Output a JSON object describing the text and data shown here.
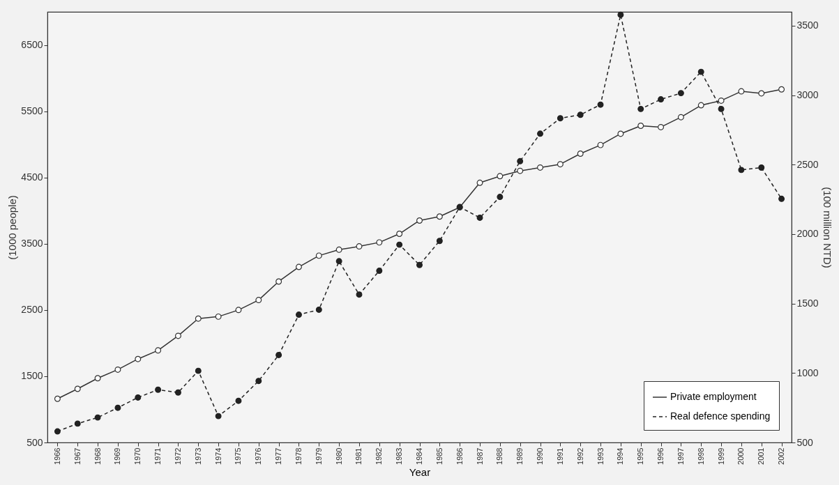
{
  "chart_data": {
    "type": "line",
    "xlabel": "Year",
    "ylabel": "(1000 people)",
    "y2label": "(100 million NTD)",
    "categories": [
      "1966",
      "1967",
      "1968",
      "1969",
      "1970",
      "1971",
      "1972",
      "1973",
      "1974",
      "1975",
      "1976",
      "1977",
      "1978",
      "1979",
      "1980",
      "1981",
      "1982",
      "1983",
      "1984",
      "1985",
      "1986",
      "1987",
      "1988",
      "1989",
      "1990",
      "1991",
      "1992",
      "1993",
      "1994",
      "1995",
      "1996",
      "1997",
      "1998",
      "1999",
      "2000",
      "2001",
      "2002"
    ],
    "series": [
      {
        "name": "Private employment",
        "color": "#333333",
        "axis": "y",
        "line_style": "solid",
        "values": [
          1160,
          1310,
          1470,
          1600,
          1760,
          1890,
          2110,
          2370,
          2400,
          2500,
          2650,
          2930,
          3150,
          3320,
          3410,
          3460,
          3520,
          3650,
          3850,
          3910,
          4050,
          4420,
          4520,
          4600,
          4650,
          4700,
          4860,
          4990,
          5160,
          5280,
          5260,
          5410,
          5590,
          5660,
          5800,
          5770,
          5830
        ]
      },
      {
        "name": "Real defence spending",
        "color": "#222222",
        "axis": "y2",
        "line_style": "dashed",
        "values": [
          580,
          636,
          680,
          750,
          824,
          880,
          860,
          1016,
          690,
          800,
          943,
          1130,
          1420,
          1456,
          1805,
          1565,
          1736,
          1924,
          1778,
          1951,
          2195,
          2118,
          2268,
          2525,
          2723,
          2834,
          2859,
          2932,
          3579,
          2901,
          2970,
          3015,
          3168,
          2901,
          2462,
          2479,
          2254
        ]
      }
    ],
    "ylim": [
      500,
      7000
    ],
    "yticks": [
      500,
      1500,
      2500,
      3500,
      4500,
      5500,
      6500
    ],
    "y2lim": [
      500,
      3600
    ],
    "y2ticks": [
      500,
      1000,
      1500,
      2000,
      2500,
      3000,
      3500
    ],
    "marker": "circle",
    "grid": false,
    "legend": "bottom right"
  }
}
